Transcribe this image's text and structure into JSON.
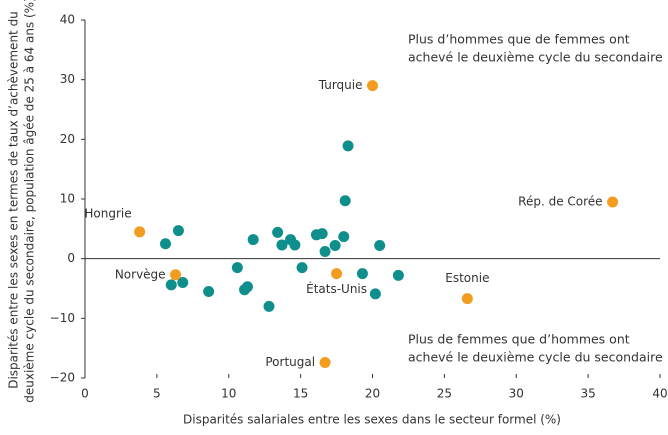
{
  "chart_data": {
    "type": "scatter",
    "xlabel": "Disparités salariales entre les sexes dans le secteur formel (%)",
    "ylabel": [
      "Disparités entre les sexes en termes de taux d’achèvement du",
      "deuxième cycle du secondaire, population âgée de 25 à 64 ans (%)"
    ],
    "annotations": [
      [
        "Plus d’hommes que de femmes ont",
        "achevé le deuxième cycle du secondaire"
      ],
      [
        "Plus de femmes que d’hommes ont",
        "achevé le deuxième cycle du secondaire"
      ]
    ],
    "xlim": [
      0,
      40
    ],
    "xticks": [
      0,
      5,
      10,
      15,
      20,
      25,
      30,
      35,
      40
    ],
    "ylim": [
      -20,
      40
    ],
    "yticks": [
      {
        "value": -20,
        "label": "−20"
      },
      {
        "value": -10,
        "label": "−10"
      },
      0,
      10,
      20,
      30,
      40
    ],
    "series": [
      {
        "color": "#0f8f8c",
        "x": [
          5.6,
          6.5,
          6.0,
          6.8,
          8.6,
          10.6,
          11.1,
          11.3,
          11.7,
          12.8,
          13.4,
          13.7,
          14.3,
          14.6,
          15.1,
          16.1,
          16.5,
          16.7,
          17.4,
          18.0,
          18.1,
          18.3,
          19.3,
          20.2,
          20.5,
          21.8
        ],
        "values": [
          2.5,
          4.7,
          -4.4,
          -4.0,
          -5.5,
          -1.5,
          -5.2,
          -4.7,
          3.2,
          -8.0,
          4.4,
          2.3,
          3.2,
          2.3,
          -1.5,
          4.0,
          4.2,
          1.2,
          2.2,
          3.7,
          9.7,
          18.9,
          -2.5,
          -5.9,
          2.2,
          -2.8
        ]
      },
      {
        "color": "#f39c1f",
        "labels": [
          "Hongrie",
          "Norvège",
          "Turquie",
          "Rép. de Corée",
          "États-Unis",
          "Estonie",
          "Portugal"
        ],
        "x": [
          3.8,
          6.3,
          20.0,
          36.7,
          17.5,
          26.6,
          16.7
        ],
        "values": [
          4.5,
          -2.7,
          29.0,
          9.5,
          -2.5,
          -6.7,
          -17.4
        ]
      }
    ]
  }
}
